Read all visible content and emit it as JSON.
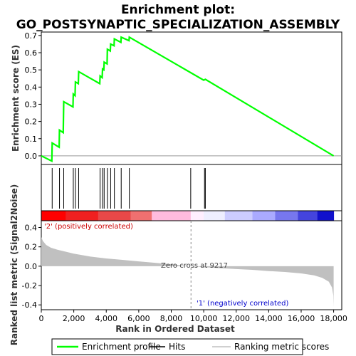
{
  "chart_data": {
    "type": "line",
    "title_line1": "Enrichment plot:",
    "title_line2": "GO_POSTSYNAPTIC_SPECIALIZATION_ASSEMBLY",
    "es_panel": {
      "ylabel": "Enrichment score (ES)",
      "ylim": [
        -0.05,
        0.72
      ],
      "yticks": [
        "0.0",
        "0.1",
        "0.2",
        "0.3",
        "0.4",
        "0.5",
        "0.6",
        "0.7"
      ],
      "ytick_values": [
        0.0,
        0.1,
        0.2,
        0.3,
        0.4,
        0.5,
        0.6,
        0.7
      ],
      "line_color": "#00ff00",
      "points": [
        [
          0,
          0.0
        ],
        [
          650,
          -0.03
        ],
        [
          670,
          0.075
        ],
        [
          1100,
          0.05
        ],
        [
          1120,
          0.15
        ],
        [
          1350,
          0.135
        ],
        [
          1380,
          0.315
        ],
        [
          1950,
          0.285
        ],
        [
          1970,
          0.36
        ],
        [
          2080,
          0.35
        ],
        [
          2100,
          0.43
        ],
        [
          2280,
          0.42
        ],
        [
          2300,
          0.49
        ],
        [
          3600,
          0.42
        ],
        [
          3620,
          0.465
        ],
        [
          3750,
          0.455
        ],
        [
          3770,
          0.505
        ],
        [
          3850,
          0.5
        ],
        [
          3870,
          0.545
        ],
        [
          4050,
          0.535
        ],
        [
          4070,
          0.62
        ],
        [
          4250,
          0.61
        ],
        [
          4270,
          0.65
        ],
        [
          4480,
          0.64
        ],
        [
          4500,
          0.68
        ],
        [
          4900,
          0.66
        ],
        [
          4920,
          0.69
        ],
        [
          5400,
          0.67
        ],
        [
          5420,
          0.69
        ],
        [
          10000,
          0.44
        ],
        [
          10100,
          0.445
        ],
        [
          18000,
          0.0
        ]
      ]
    },
    "hits": [
      670,
      1120,
      1380,
      1970,
      2100,
      2300,
      3620,
      3770,
      3870,
      4070,
      4270,
      4500,
      4920,
      5420,
      9200,
      10050,
      10100
    ],
    "metric_panel": {
      "ylabel": "Ranked list metric (Signal2Noise)",
      "ylim": [
        -0.45,
        0.47
      ],
      "yticks": [
        "0.4",
        "0.2",
        "0.0",
        "-0.2",
        "-0.4"
      ],
      "ytick_values": [
        0.4,
        0.2,
        0.0,
        -0.2,
        -0.4
      ],
      "fill_color": "#c0c0c0",
      "curve": [
        [
          0,
          0.3
        ],
        [
          100,
          0.26
        ],
        [
          300,
          0.22
        ],
        [
          600,
          0.19
        ],
        [
          1000,
          0.17
        ],
        [
          2000,
          0.13
        ],
        [
          3000,
          0.1
        ],
        [
          4000,
          0.08
        ],
        [
          5000,
          0.065
        ],
        [
          6000,
          0.05
        ],
        [
          7000,
          0.035
        ],
        [
          8000,
          0.02
        ],
        [
          9217,
          0.0
        ],
        [
          10000,
          -0.01
        ],
        [
          11000,
          -0.02
        ],
        [
          12000,
          -0.03
        ],
        [
          13000,
          -0.038
        ],
        [
          14000,
          -0.05
        ],
        [
          15000,
          -0.06
        ],
        [
          16000,
          -0.075
        ],
        [
          16800,
          -0.095
        ],
        [
          17300,
          -0.12
        ],
        [
          17700,
          -0.16
        ],
        [
          17900,
          -0.22
        ],
        [
          17980,
          -0.3
        ],
        [
          18000,
          -0.42
        ]
      ],
      "pos_label": "'2' (positively correlated)",
      "neg_label": "'1' (negatively correlated)",
      "zero_cross_label": "Zero cross at 9217",
      "zero_cross": 9217,
      "pos_label_color": "#cc0000",
      "neg_label_color": "#0000cc"
    },
    "xlabel": "Rank in Ordered Dataset",
    "xlim": [
      0,
      18500
    ],
    "xticks": [
      "0",
      "2,000",
      "4,000",
      "6,000",
      "8,000",
      "10,000",
      "12,000",
      "14,000",
      "16,000",
      "18,000"
    ],
    "xtick_values": [
      0,
      2000,
      4000,
      6000,
      8000,
      10000,
      12000,
      14000,
      16000,
      18000
    ],
    "color_bar": {
      "stops": [
        [
          0,
          "#ff0000"
        ],
        [
          1500,
          "#f02020"
        ],
        [
          3500,
          "#e84848"
        ],
        [
          5500,
          "#f07070"
        ],
        [
          6800,
          "#ffbbdd"
        ],
        [
          9200,
          "#ffeeff"
        ],
        [
          10000,
          "#eeeeff"
        ],
        [
          11300,
          "#ccccff"
        ],
        [
          13000,
          "#aaaaff"
        ],
        [
          14400,
          "#7777ee"
        ],
        [
          15800,
          "#4444dd"
        ],
        [
          17000,
          "#1111cc"
        ],
        [
          18000,
          "#0000aa"
        ]
      ]
    },
    "legend": [
      {
        "label": "Enrichment profile",
        "color": "#00ff00",
        "kind": "line-green"
      },
      {
        "label": "Hits",
        "color": "#000000",
        "kind": "line-black"
      },
      {
        "label": "Ranking metric scores",
        "color": "#c0c0c0",
        "kind": "line-gray"
      }
    ]
  }
}
